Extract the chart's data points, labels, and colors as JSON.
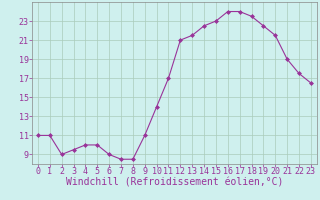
{
  "x": [
    0,
    1,
    2,
    3,
    4,
    5,
    6,
    7,
    8,
    9,
    10,
    11,
    12,
    13,
    14,
    15,
    16,
    17,
    18,
    19,
    20,
    21,
    22,
    23
  ],
  "y": [
    11,
    11,
    9,
    9.5,
    10,
    10,
    9,
    8.5,
    8.5,
    11,
    14,
    17,
    21,
    21.5,
    22.5,
    23,
    24,
    24,
    23.5,
    22.5,
    21.5,
    19,
    17.5,
    16.5
  ],
  "line_color": "#993399",
  "marker": "D",
  "marker_size": 2,
  "bg_color": "#cff0ee",
  "grid_color": "#aaccbb",
  "xlabel": "Windchill (Refroidissement éolien,°C)",
  "xlabel_color": "#993399",
  "ylabel_ticks": [
    9,
    11,
    13,
    15,
    17,
    19,
    21,
    23
  ],
  "ylim": [
    8.0,
    25.0
  ],
  "xlim": [
    -0.5,
    23.5
  ],
  "tick_fontsize": 6,
  "label_fontsize": 7
}
